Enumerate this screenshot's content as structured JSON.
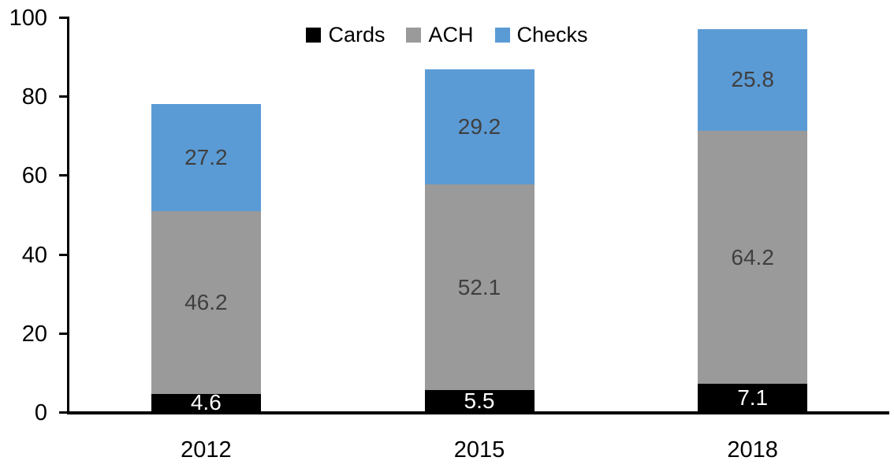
{
  "chart_data": {
    "type": "bar",
    "stacked": true,
    "title": "",
    "xlabel": "",
    "ylabel": "",
    "categories": [
      "2012",
      "2015",
      "2018"
    ],
    "series": [
      {
        "name": "Cards",
        "color": "#000000",
        "label_color": "#ffffff",
        "values": [
          4.6,
          5.5,
          7.1
        ]
      },
      {
        "name": "ACH",
        "color": "#9a9a9a",
        "label_color": "#3f3f3f",
        "values": [
          46.2,
          52.1,
          64.2
        ]
      },
      {
        "name": "Checks",
        "color": "#5b9bd5",
        "label_color": "#3f3f3f",
        "values": [
          27.2,
          29.2,
          25.8
        ]
      }
    ],
    "ylim": [
      0,
      100
    ],
    "yticks": [
      0,
      20,
      40,
      60,
      80,
      100
    ],
    "legend_position": "top-center",
    "legend_entries": [
      "Cards",
      "ACH",
      "Checks"
    ],
    "grid": false,
    "axis_color": "#000000",
    "background_color": "#ffffff",
    "data_labels_shown": true
  }
}
